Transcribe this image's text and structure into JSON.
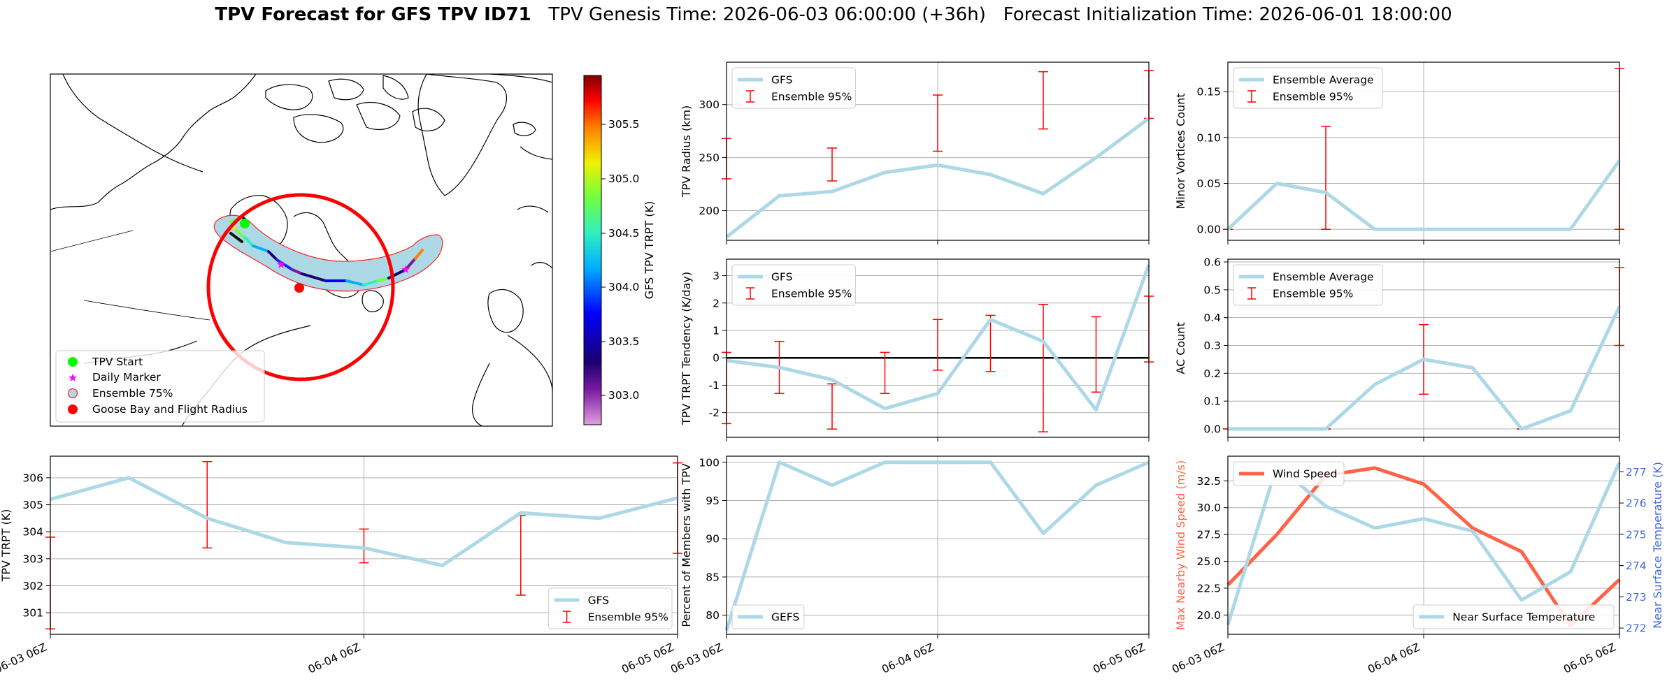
{
  "title": {
    "main": "TPV Forecast for GFS TPV ID71",
    "genesis": "TPV Genesis Time: 2026-06-03 06:00:00 (+36h)",
    "init": "Forecast Initialization Time: 2026-06-01 18:00:00"
  },
  "colors": {
    "gfs_line": "#add8e6",
    "errorbar": "#ff0000",
    "wind": "#ff6347",
    "temp_axis": "#4169e1",
    "flight_circle": "#ff0000"
  },
  "map": {
    "legend": [
      "TPV Start",
      "Daily Marker",
      "Ensemble 75%",
      "Goose Bay and Flight Radius"
    ],
    "colorbar": {
      "label": "GFS TPV TRPT (K)",
      "ticks": [
        "305.5",
        "305.0",
        "304.5",
        "304.0",
        "303.5",
        "303.0"
      ]
    }
  },
  "chart_data": [
    {
      "id": "radius",
      "type": "line",
      "ylabel": "TPV Radius (km)",
      "x": [
        "06-03 06Z",
        "06-03 12Z",
        "06-03 18Z",
        "06-04 00Z",
        "06-04 06Z",
        "06-04 12Z",
        "06-04 18Z",
        "06-05 00Z",
        "06-05 06Z"
      ],
      "ylim": [
        172,
        340
      ],
      "yticks": [
        200,
        250,
        300
      ],
      "grid": true,
      "series": [
        {
          "name": "GFS",
          "values": [
            175,
            214,
            218,
            236,
            243,
            234,
            216,
            250,
            287
          ]
        }
      ],
      "errorbars": {
        "name": "Ensemble 95%",
        "low": [
          230,
          null,
          228,
          null,
          256,
          null,
          277,
          null,
          287
        ],
        "high": [
          268,
          null,
          259,
          null,
          309,
          null,
          331,
          null,
          332
        ]
      },
      "legend": "top-left"
    },
    {
      "id": "minor",
      "type": "line",
      "ylabel": "Minor Vortices Count",
      "x": [
        "06-03 06Z",
        "06-03 12Z",
        "06-03 18Z",
        "06-04 00Z",
        "06-04 06Z",
        "06-04 12Z",
        "06-04 18Z",
        "06-05 00Z",
        "06-05 06Z"
      ],
      "ylim": [
        -0.012,
        0.182
      ],
      "yticks": [
        0.0,
        0.05,
        0.1,
        0.15
      ],
      "ytick_labels": [
        "0.00",
        "0.05",
        "0.10",
        "0.15"
      ],
      "grid": true,
      "series": [
        {
          "name": "Ensemble Average",
          "values": [
            0.0,
            0.05,
            0.04,
            0.0,
            0.0,
            0.0,
            0.0,
            0.0,
            0.075
          ]
        }
      ],
      "errorbars": {
        "name": "Ensemble 95%",
        "low": [
          0,
          null,
          0,
          null,
          0,
          null,
          0,
          null,
          0
        ],
        "high": [
          0,
          null,
          0.112,
          null,
          0,
          null,
          0,
          null,
          0.175
        ]
      },
      "legend": "top-left"
    },
    {
      "id": "tendency",
      "type": "line",
      "ylabel": "TPV TRPT Tendency (K/day)",
      "x": [
        "06-03 06Z",
        "06-03 12Z",
        "06-03 18Z",
        "06-04 00Z",
        "06-04 06Z",
        "06-04 12Z",
        "06-04 18Z",
        "06-05 00Z",
        "06-05 06Z"
      ],
      "ylim": [
        -2.9,
        3.6
      ],
      "yticks": [
        -2,
        -1,
        0,
        1,
        2,
        3
      ],
      "grid": true,
      "zero_line": true,
      "series": [
        {
          "name": "GFS",
          "values": [
            -0.1,
            -0.35,
            -0.8,
            -1.85,
            -1.3,
            1.4,
            0.6,
            -1.9,
            3.4
          ]
        }
      ],
      "errorbars": {
        "name": "Ensemble 95%",
        "low": [
          -2.4,
          -1.3,
          -2.6,
          -1.3,
          -0.45,
          -0.5,
          -2.7,
          -1.25,
          -0.15
        ],
        "high": [
          0.2,
          0.6,
          -0.95,
          0.2,
          1.4,
          1.55,
          1.95,
          1.5,
          2.25
        ]
      },
      "legend": "top-left"
    },
    {
      "id": "ac",
      "type": "line",
      "ylabel": "AC Count",
      "x": [
        "06-03 06Z",
        "06-03 12Z",
        "06-03 18Z",
        "06-04 00Z",
        "06-04 06Z",
        "06-04 12Z",
        "06-04 18Z",
        "06-05 00Z",
        "06-05 06Z"
      ],
      "ylim": [
        -0.03,
        0.61
      ],
      "yticks": [
        0.0,
        0.1,
        0.2,
        0.3,
        0.4,
        0.5,
        0.6
      ],
      "ytick_labels": [
        "0.0",
        "0.1",
        "0.2",
        "0.3",
        "0.4",
        "0.5",
        "0.6"
      ],
      "grid": true,
      "series": [
        {
          "name": "Ensemble Average",
          "values": [
            0.0,
            0.0,
            0.0,
            0.16,
            0.25,
            0.22,
            0.0,
            0.065,
            0.44
          ]
        }
      ],
      "errorbars": {
        "name": "Ensemble 95%",
        "low": [
          0,
          null,
          0,
          null,
          0.125,
          null,
          0,
          null,
          0.3
        ],
        "high": [
          0,
          null,
          0,
          null,
          0.375,
          null,
          0,
          null,
          0.58
        ]
      },
      "legend": "top-left"
    },
    {
      "id": "trpt",
      "type": "line",
      "ylabel": "TPV TRPT (K)",
      "x": [
        "06-03 06Z",
        "06-03 12Z",
        "06-03 18Z",
        "06-04 00Z",
        "06-04 06Z",
        "06-04 12Z",
        "06-04 18Z",
        "06-05 00Z",
        "06-05 06Z"
      ],
      "xticks": [
        "06-03 06Z",
        "06-04 06Z",
        "06-05 06Z"
      ],
      "ylim": [
        300.2,
        306.8
      ],
      "yticks": [
        301,
        302,
        303,
        304,
        305,
        306
      ],
      "grid": true,
      "series": [
        {
          "name": "GFS",
          "values": [
            305.2,
            306.0,
            304.5,
            303.6,
            303.4,
            302.75,
            304.7,
            304.5,
            305.25
          ]
        }
      ],
      "errorbars": {
        "name": "Ensemble 95%",
        "low": [
          300.4,
          null,
          303.4,
          null,
          302.85,
          null,
          301.65,
          null,
          303.2
        ],
        "high": [
          303.8,
          null,
          306.6,
          null,
          304.1,
          null,
          304.6,
          null,
          306.55
        ]
      },
      "legend": "bottom-right"
    },
    {
      "id": "members",
      "type": "line",
      "ylabel": "Percent of Members with TPV",
      "x": [
        "06-03 06Z",
        "06-03 12Z",
        "06-03 18Z",
        "06-04 00Z",
        "06-04 06Z",
        "06-04 12Z",
        "06-04 18Z",
        "06-05 00Z",
        "06-05 06Z"
      ],
      "xticks": [
        "06-03 06Z",
        "06-04 06Z",
        "06-05 06Z"
      ],
      "ylim": [
        77.5,
        100.8
      ],
      "yticks": [
        80,
        85,
        90,
        95,
        100
      ],
      "grid": true,
      "series": [
        {
          "name": "GEFS",
          "values": [
            78,
            100,
            97,
            100,
            100,
            100,
            90.7,
            97,
            100
          ]
        }
      ],
      "legend": "bottom-left"
    },
    {
      "id": "wind_temp",
      "type": "line",
      "ylabel": "Max Nearby Wind Speed (m/s)",
      "ylabel_right": "Near Surface Temperature (K)",
      "x": [
        "06-03 06Z",
        "06-03 12Z",
        "06-03 18Z",
        "06-04 00Z",
        "06-04 06Z",
        "06-04 12Z",
        "06-04 18Z",
        "06-05 00Z",
        "06-05 06Z"
      ],
      "xticks": [
        "06-03 06Z",
        "06-04 06Z",
        "06-05 06Z"
      ],
      "ylim": [
        18.2,
        34.8
      ],
      "yticks": [
        20.0,
        22.5,
        25.0,
        27.5,
        30.0,
        32.5
      ],
      "ytick_labels": [
        "20.0",
        "22.5",
        "25.0",
        "27.5",
        "30.0",
        "32.5"
      ],
      "ylim_right": [
        271.8,
        277.5
      ],
      "yticks_right": [
        272,
        273,
        274,
        275,
        276,
        277
      ],
      "grid": true,
      "series": [
        {
          "name": "Wind Speed",
          "axis": "left",
          "values": [
            22.8,
            27.5,
            33.0,
            33.7,
            32.2,
            28.1,
            25.9,
            19.0,
            23.3
          ]
        },
        {
          "name": "Near Surface Temperature",
          "axis": "right",
          "values": [
            272.1,
            277.2,
            275.9,
            275.2,
            275.5,
            275.1,
            272.9,
            273.8,
            277.3
          ]
        }
      ],
      "legend_left": "top-left",
      "legend_right": "bottom-right"
    }
  ]
}
